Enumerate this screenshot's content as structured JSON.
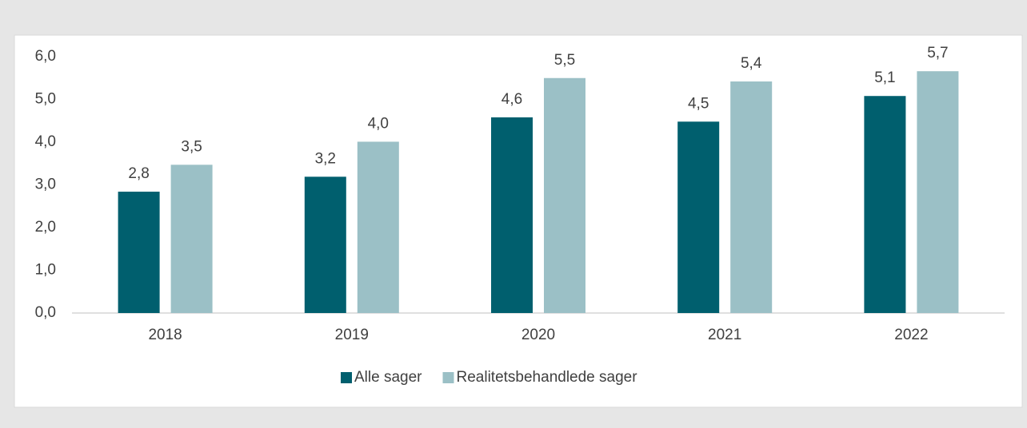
{
  "chart_data": {
    "type": "bar",
    "categories": [
      "2018",
      "2019",
      "2020",
      "2021",
      "2022"
    ],
    "series": [
      {
        "name": "Alle sager",
        "color": "#005f6e",
        "values": [
          2.84,
          3.19,
          4.58,
          4.48,
          5.08
        ],
        "value_labels": [
          "2,8",
          "3,2",
          "4,6",
          "4,5",
          "5,1"
        ]
      },
      {
        "name": "Realitetsbehandlede sager",
        "color": "#9bc0c6",
        "values": [
          3.47,
          4.01,
          5.5,
          5.42,
          5.66
        ],
        "value_labels": [
          "3,5",
          "4,0",
          "5,5",
          "5,4",
          "5,7"
        ]
      }
    ],
    "ylim": [
      0,
      6
    ],
    "yticks": [
      {
        "value": 0,
        "label": "0,0"
      },
      {
        "value": 1,
        "label": "1,0"
      },
      {
        "value": 2,
        "label": "2,0"
      },
      {
        "value": 3,
        "label": "3,0"
      },
      {
        "value": 4,
        "label": "4,0"
      },
      {
        "value": 5,
        "label": "5,0"
      },
      {
        "value": 6,
        "label": "6,0"
      }
    ],
    "legend": "bottom"
  }
}
